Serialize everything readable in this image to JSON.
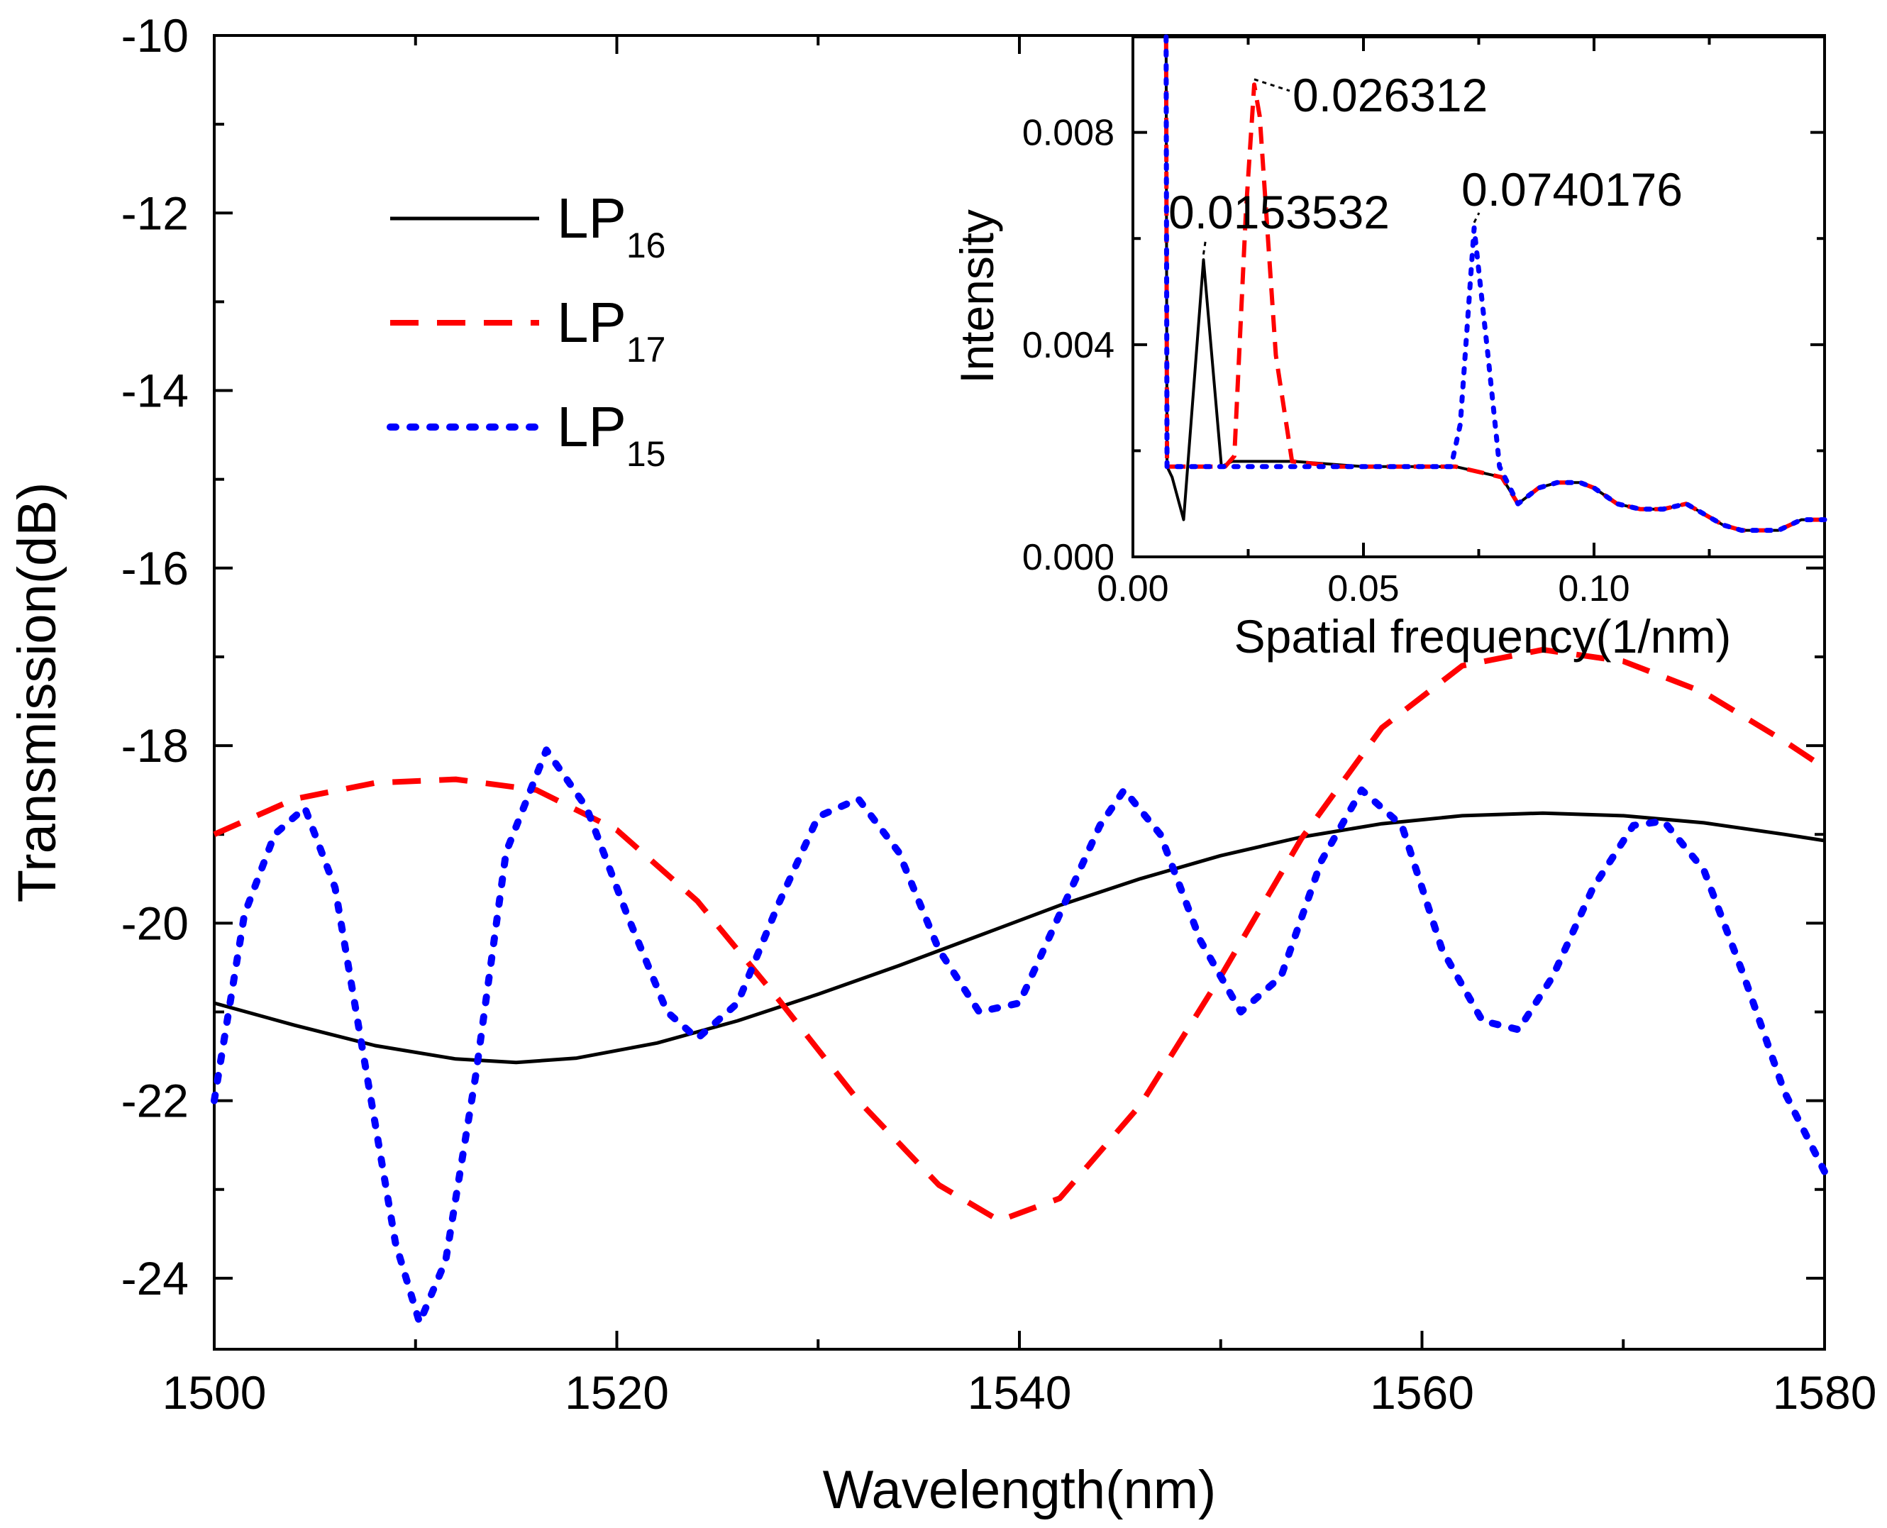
{
  "chart_data": [
    {
      "type": "line",
      "title": "",
      "xlabel": "Wavelength(nm)",
      "ylabel": "Transmission(dB)",
      "xlim": [
        1500,
        1580
      ],
      "ylim": [
        -24.8,
        -10
      ],
      "xticks": [
        1500,
        1520,
        1540,
        1560,
        1580
      ],
      "yticks": [
        -24,
        -22,
        -20,
        -18,
        -16,
        -14,
        -12,
        -10
      ],
      "legend_position": "upper-left",
      "series": [
        {
          "name": "LP16",
          "base": "LP",
          "sub": "16",
          "color": "#000000",
          "style": "solid",
          "x": [
            1500,
            1504,
            1508,
            1512,
            1515,
            1518,
            1522,
            1526,
            1530,
            1534,
            1538,
            1542,
            1546,
            1550,
            1554,
            1558,
            1562,
            1566,
            1570,
            1574,
            1578,
            1580
          ],
          "y": [
            -20.9,
            -21.15,
            -21.38,
            -21.53,
            -21.57,
            -21.52,
            -21.35,
            -21.1,
            -20.8,
            -20.48,
            -20.14,
            -19.8,
            -19.5,
            -19.24,
            -19.03,
            -18.88,
            -18.79,
            -18.76,
            -18.79,
            -18.87,
            -19.0,
            -19.07
          ]
        },
        {
          "name": "LP17",
          "base": "LP",
          "sub": "17",
          "color": "#ff0000",
          "style": "dashed",
          "x": [
            1500,
            1504,
            1508,
            1512,
            1516,
            1520,
            1524,
            1528,
            1532,
            1536,
            1539,
            1542,
            1546,
            1550,
            1554,
            1558,
            1562,
            1566,
            1570,
            1574,
            1578,
            1580
          ],
          "y": [
            -19.0,
            -18.6,
            -18.42,
            -18.38,
            -18.5,
            -18.95,
            -19.75,
            -20.85,
            -22.0,
            -22.95,
            -23.35,
            -23.1,
            -22.05,
            -20.6,
            -19.05,
            -17.8,
            -17.1,
            -16.92,
            -17.05,
            -17.4,
            -17.95,
            -18.25
          ]
        },
        {
          "name": "LP15",
          "base": "LP",
          "sub": "15",
          "color": "#0000ff",
          "style": "dotted",
          "x": [
            1500,
            1501.5,
            1503,
            1504.5,
            1506,
            1507.5,
            1509,
            1510.2,
            1511.5,
            1513,
            1514.5,
            1516.5,
            1518.5,
            1520.5,
            1522.5,
            1524,
            1526,
            1528,
            1530,
            1532,
            1534,
            1536,
            1538,
            1540,
            1542,
            1544,
            1545.2,
            1547,
            1549,
            1551,
            1553,
            1555,
            1557,
            1559,
            1561,
            1563,
            1564.8,
            1566.5,
            1568.5,
            1570.5,
            1572,
            1574,
            1576,
            1578,
            1580
          ],
          "y": [
            -22.0,
            -19.9,
            -19.0,
            -18.7,
            -19.6,
            -21.6,
            -23.6,
            -24.5,
            -23.8,
            -21.7,
            -19.2,
            -18.05,
            -18.7,
            -19.9,
            -21.0,
            -21.3,
            -20.9,
            -19.8,
            -18.8,
            -18.6,
            -19.2,
            -20.3,
            -21.0,
            -20.9,
            -19.9,
            -18.9,
            -18.5,
            -19.0,
            -20.2,
            -21.0,
            -20.6,
            -19.3,
            -18.5,
            -18.9,
            -20.3,
            -21.1,
            -21.2,
            -20.6,
            -19.6,
            -18.9,
            -18.85,
            -19.4,
            -20.6,
            -21.9,
            -22.8
          ]
        }
      ]
    },
    {
      "type": "line",
      "title": "",
      "xlabel": "Spatial frequency(1/nm)",
      "ylabel": "Intensity",
      "xlim": [
        0,
        0.15
      ],
      "ylim": [
        0,
        0.0098
      ],
      "xticks": [
        0.0,
        0.05,
        0.1
      ],
      "xtick_labels": [
        "0.00",
        "0.05",
        "0.10"
      ],
      "yticks": [
        0.0,
        0.004,
        0.008
      ],
      "ytick_labels": [
        "0.000",
        "0.004",
        "0.008"
      ],
      "annotations": [
        {
          "text": "0.0153532",
          "x": 0.0153532
        },
        {
          "text": "0.026312",
          "x": 0.026312
        },
        {
          "text": "0.0740176",
          "x": 0.0740176
        }
      ],
      "series": [
        {
          "name": "LP16",
          "color": "#000000",
          "style": "solid",
          "x": [
            0.0072,
            0.0074,
            0.0085,
            0.011,
            0.0153,
            0.0192,
            0.0215,
            0.026,
            0.035,
            0.05,
            0.06,
            0.07,
            0.075,
            0.08,
            0.0835,
            0.088,
            0.092,
            0.097,
            0.1,
            0.105,
            0.11,
            0.115,
            0.12,
            0.124,
            0.128,
            0.132,
            0.1365,
            0.14,
            0.145,
            0.15
          ],
          "y": [
            0.0098,
            0.0017,
            0.0015,
            0.0007,
            0.0056,
            0.0017,
            0.0018,
            0.0018,
            0.0018,
            0.0017,
            0.0017,
            0.0017,
            0.0016,
            0.0015,
            0.001,
            0.0013,
            0.0014,
            0.0014,
            0.0013,
            0.001,
            0.0009,
            0.0009,
            0.001,
            0.0008,
            0.0006,
            0.0005,
            0.0005,
            0.0005,
            0.0007,
            0.0007
          ]
        },
        {
          "name": "LP17",
          "color": "#ff0000",
          "style": "dashed",
          "x": [
            0.0072,
            0.0074,
            0.02,
            0.022,
            0.0245,
            0.0263,
            0.0275,
            0.031,
            0.0345,
            0.045,
            0.06,
            0.07,
            0.08,
            0.0835,
            0.088,
            0.092,
            0.097,
            0.1,
            0.105,
            0.11,
            0.115,
            0.12,
            0.124,
            0.128,
            0.132,
            0.1365,
            0.14,
            0.145,
            0.15
          ],
          "y": [
            0.0098,
            0.0017,
            0.0017,
            0.0019,
            0.0065,
            0.0089,
            0.0083,
            0.0038,
            0.0018,
            0.0017,
            0.0017,
            0.0017,
            0.0015,
            0.001,
            0.0013,
            0.0014,
            0.0014,
            0.0013,
            0.001,
            0.0009,
            0.0009,
            0.001,
            0.0008,
            0.0006,
            0.0005,
            0.0005,
            0.0005,
            0.0007,
            0.0007
          ]
        },
        {
          "name": "LP15",
          "color": "#0000ff",
          "style": "dotted",
          "x": [
            0.0072,
            0.0074,
            0.02,
            0.04,
            0.06,
            0.069,
            0.071,
            0.074,
            0.077,
            0.0795,
            0.0835,
            0.088,
            0.092,
            0.097,
            0.1,
            0.105,
            0.11,
            0.115,
            0.12,
            0.124,
            0.128,
            0.132,
            0.1365,
            0.14,
            0.145,
            0.15
          ],
          "y": [
            0.0098,
            0.0017,
            0.0017,
            0.0017,
            0.0017,
            0.0017,
            0.0025,
            0.0062,
            0.0038,
            0.0017,
            0.001,
            0.0013,
            0.0014,
            0.0014,
            0.0013,
            0.001,
            0.0009,
            0.0009,
            0.001,
            0.0008,
            0.0006,
            0.0005,
            0.0005,
            0.0005,
            0.0007,
            0.0007
          ]
        }
      ]
    }
  ]
}
